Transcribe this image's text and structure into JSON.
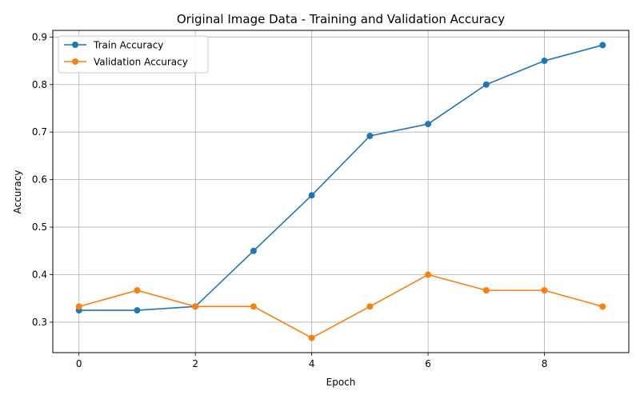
{
  "chart_data": {
    "type": "line",
    "title": "Original Image Data - Training and Validation Accuracy",
    "xlabel": "Epoch",
    "ylabel": "Accuracy",
    "x": [
      0,
      1,
      2,
      3,
      4,
      5,
      6,
      7,
      8,
      9
    ],
    "xlim": [
      -0.45,
      9.45
    ],
    "ylim": [
      0.236,
      0.914
    ],
    "xticks": [
      0,
      2,
      4,
      6,
      8
    ],
    "yticks": [
      0.3,
      0.4,
      0.5,
      0.6,
      0.7,
      0.8,
      0.9
    ],
    "grid": true,
    "legend_position": "upper-left",
    "series": [
      {
        "name": "Train Accuracy",
        "color": "#1f77b4",
        "marker": "circle",
        "values": [
          0.325,
          0.325,
          0.333,
          0.45,
          0.567,
          0.692,
          0.717,
          0.8,
          0.85,
          0.883
        ]
      },
      {
        "name": "Validation Accuracy",
        "color": "#ff7f0e",
        "marker": "circle",
        "values": [
          0.333,
          0.367,
          0.333,
          0.333,
          0.267,
          0.333,
          0.4,
          0.367,
          0.367,
          0.333
        ]
      }
    ]
  }
}
